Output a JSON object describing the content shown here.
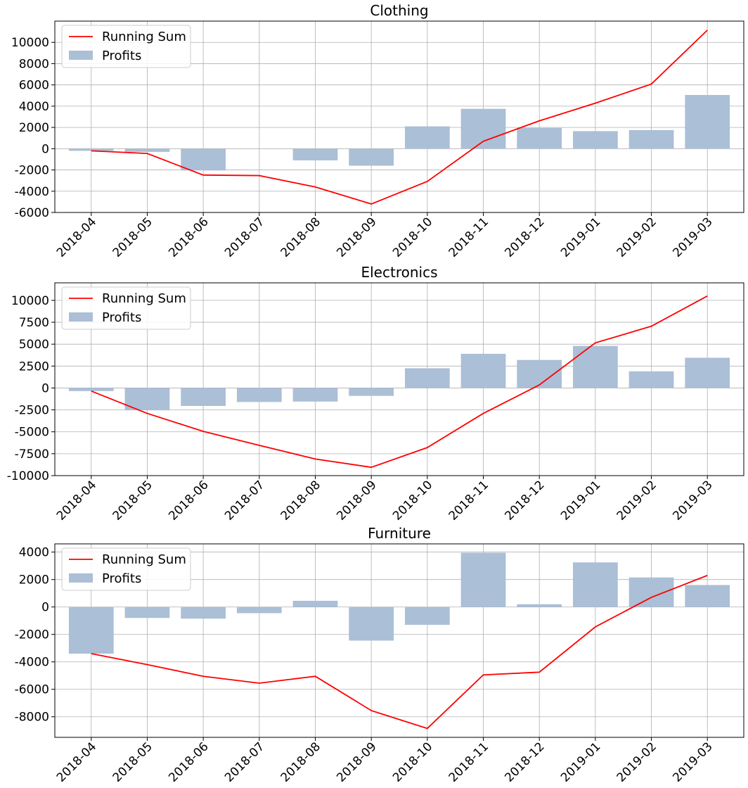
{
  "colors": {
    "bar": "#abbfd6",
    "line": "#ff0000",
    "grid": "#b0b0b0",
    "axis": "#000000"
  },
  "chart_data": [
    {
      "type": "bar",
      "title": "Clothing",
      "categories": [
        "2018-04",
        "2018-05",
        "2018-06",
        "2018-07",
        "2018-08",
        "2018-09",
        "2018-10",
        "2018-11",
        "2018-12",
        "2019-01",
        "2019-02",
        "2019-03"
      ],
      "series": [
        {
          "name": "Running Sum",
          "kind": "line",
          "values": [
            -200,
            -450,
            -2480,
            -2530,
            -3600,
            -5200,
            -3080,
            700,
            2620,
            4280,
            6080,
            11150
          ]
        },
        {
          "name": "Profits",
          "kind": "bar",
          "values": [
            -200,
            -300,
            -2050,
            0,
            -1100,
            -1600,
            2100,
            3750,
            1950,
            1650,
            1750,
            5050
          ]
        }
      ],
      "ylim": [
        -6000,
        12000
      ],
      "yticks": [
        -6000,
        -4000,
        -2000,
        0,
        2000,
        4000,
        6000,
        8000,
        10000
      ],
      "grid": true,
      "legend": "top-left"
    },
    {
      "type": "bar",
      "title": "Electronics",
      "categories": [
        "2018-04",
        "2018-05",
        "2018-06",
        "2018-07",
        "2018-08",
        "2018-09",
        "2018-10",
        "2018-11",
        "2018-12",
        "2019-01",
        "2019-02",
        "2019-03"
      ],
      "series": [
        {
          "name": "Running Sum",
          "kind": "line",
          "values": [
            -350,
            -2900,
            -4950,
            -6550,
            -8100,
            -9050,
            -6800,
            -2900,
            350,
            5150,
            7050,
            10500
          ]
        },
        {
          "name": "Profits",
          "kind": "bar",
          "values": [
            -350,
            -2550,
            -2050,
            -1600,
            -1550,
            -900,
            2250,
            3900,
            3200,
            4800,
            1900,
            3450
          ]
        }
      ],
      "ylim": [
        -10000,
        12000
      ],
      "yticks": [
        -10000,
        -7500,
        -5000,
        -2500,
        0,
        2500,
        5000,
        7500,
        10000
      ],
      "grid": true,
      "legend": "top-left"
    },
    {
      "type": "bar",
      "title": "Furniture",
      "categories": [
        "2018-04",
        "2018-05",
        "2018-06",
        "2018-07",
        "2018-08",
        "2018-09",
        "2018-10",
        "2018-11",
        "2018-12",
        "2019-01",
        "2019-02",
        "2019-03"
      ],
      "series": [
        {
          "name": "Running Sum",
          "kind": "line",
          "values": [
            -3400,
            -4200,
            -5050,
            -5550,
            -5050,
            -7550,
            -8850,
            -4950,
            -4750,
            -1450,
            700,
            2300
          ]
        },
        {
          "name": "Profits",
          "kind": "bar",
          "values": [
            -3400,
            -800,
            -850,
            -450,
            450,
            -2450,
            -1300,
            3950,
            200,
            3250,
            2150,
            1600
          ]
        }
      ],
      "ylim": [
        -9500,
        4600
      ],
      "yticks": [
        -8000,
        -6000,
        -4000,
        -2000,
        0,
        2000,
        4000
      ],
      "grid": true,
      "legend": "top-left"
    }
  ]
}
